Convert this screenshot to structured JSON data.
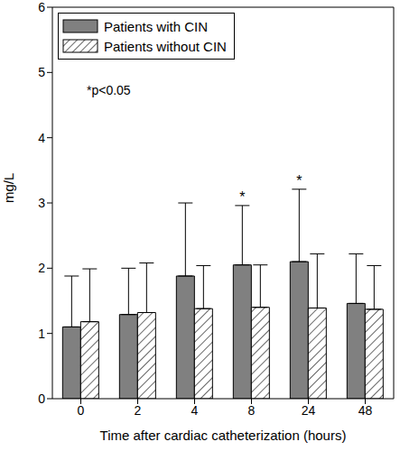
{
  "chart_data": {
    "type": "bar",
    "categories": [
      "0",
      "2",
      "4",
      "8",
      "24",
      "48"
    ],
    "series": [
      {
        "name": "Patients with CIN",
        "color": "#808080",
        "values": [
          1.1,
          1.29,
          1.88,
          2.05,
          2.1,
          1.46
        ],
        "errors": [
          0.78,
          0.71,
          1.12,
          0.91,
          1.11,
          0.76
        ]
      },
      {
        "name": "Patients without CIN",
        "color": "#ffffff",
        "marker": "hatch",
        "values": [
          1.18,
          1.32,
          1.38,
          1.4,
          1.39,
          1.37
        ],
        "errors": [
          0.81,
          0.76,
          0.66,
          0.65,
          0.83,
          0.67
        ]
      }
    ],
    "ylim": [
      0,
      6
    ],
    "yticks": [
      0,
      1,
      2,
      3,
      4,
      5,
      6
    ],
    "y_label": "mg/L",
    "x_label": "Time after cardiac catheterization (hours)",
    "annotations": [
      {
        "text": "*",
        "category": "8"
      },
      {
        "text": "*",
        "category": "24"
      }
    ],
    "note": "*p<0.05",
    "legend": "upper left"
  }
}
